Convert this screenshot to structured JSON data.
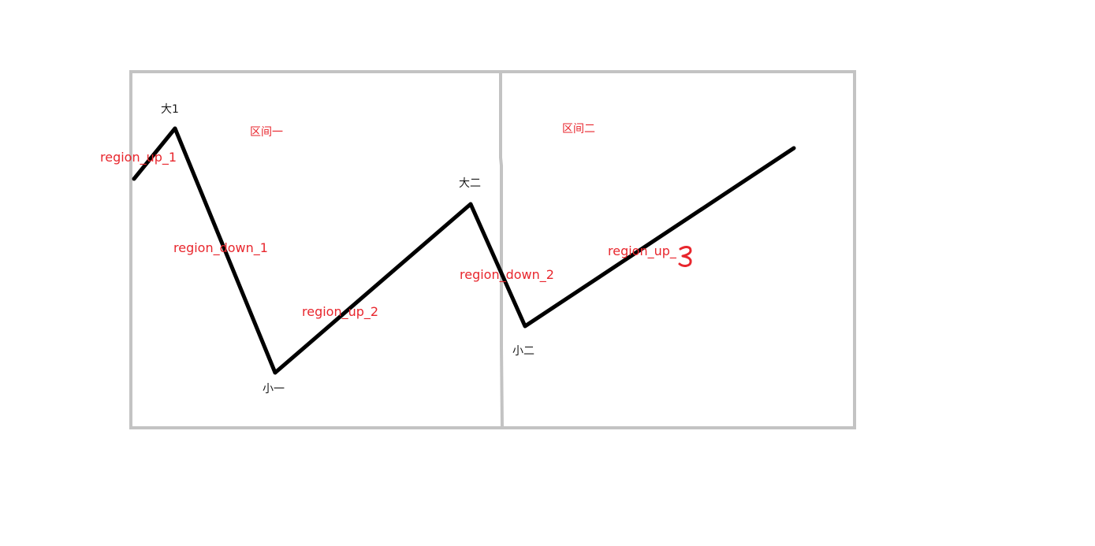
{
  "labels": {
    "big1": "大1",
    "region1": "区间一",
    "up1": "region_up_1",
    "big2": "大二",
    "down1": "region_down_1",
    "up2": "region_up_2",
    "small1": "小一",
    "region2": "区间二",
    "down2": "region_down_2",
    "up3": "region_up_",
    "up3_handwritten_suffix": "3",
    "small2": "小二"
  },
  "colors": {
    "frame": "#c3c3c3",
    "line": "#000000",
    "annotation_red": "#e8262d",
    "text_black": "#1a1a1a"
  }
}
